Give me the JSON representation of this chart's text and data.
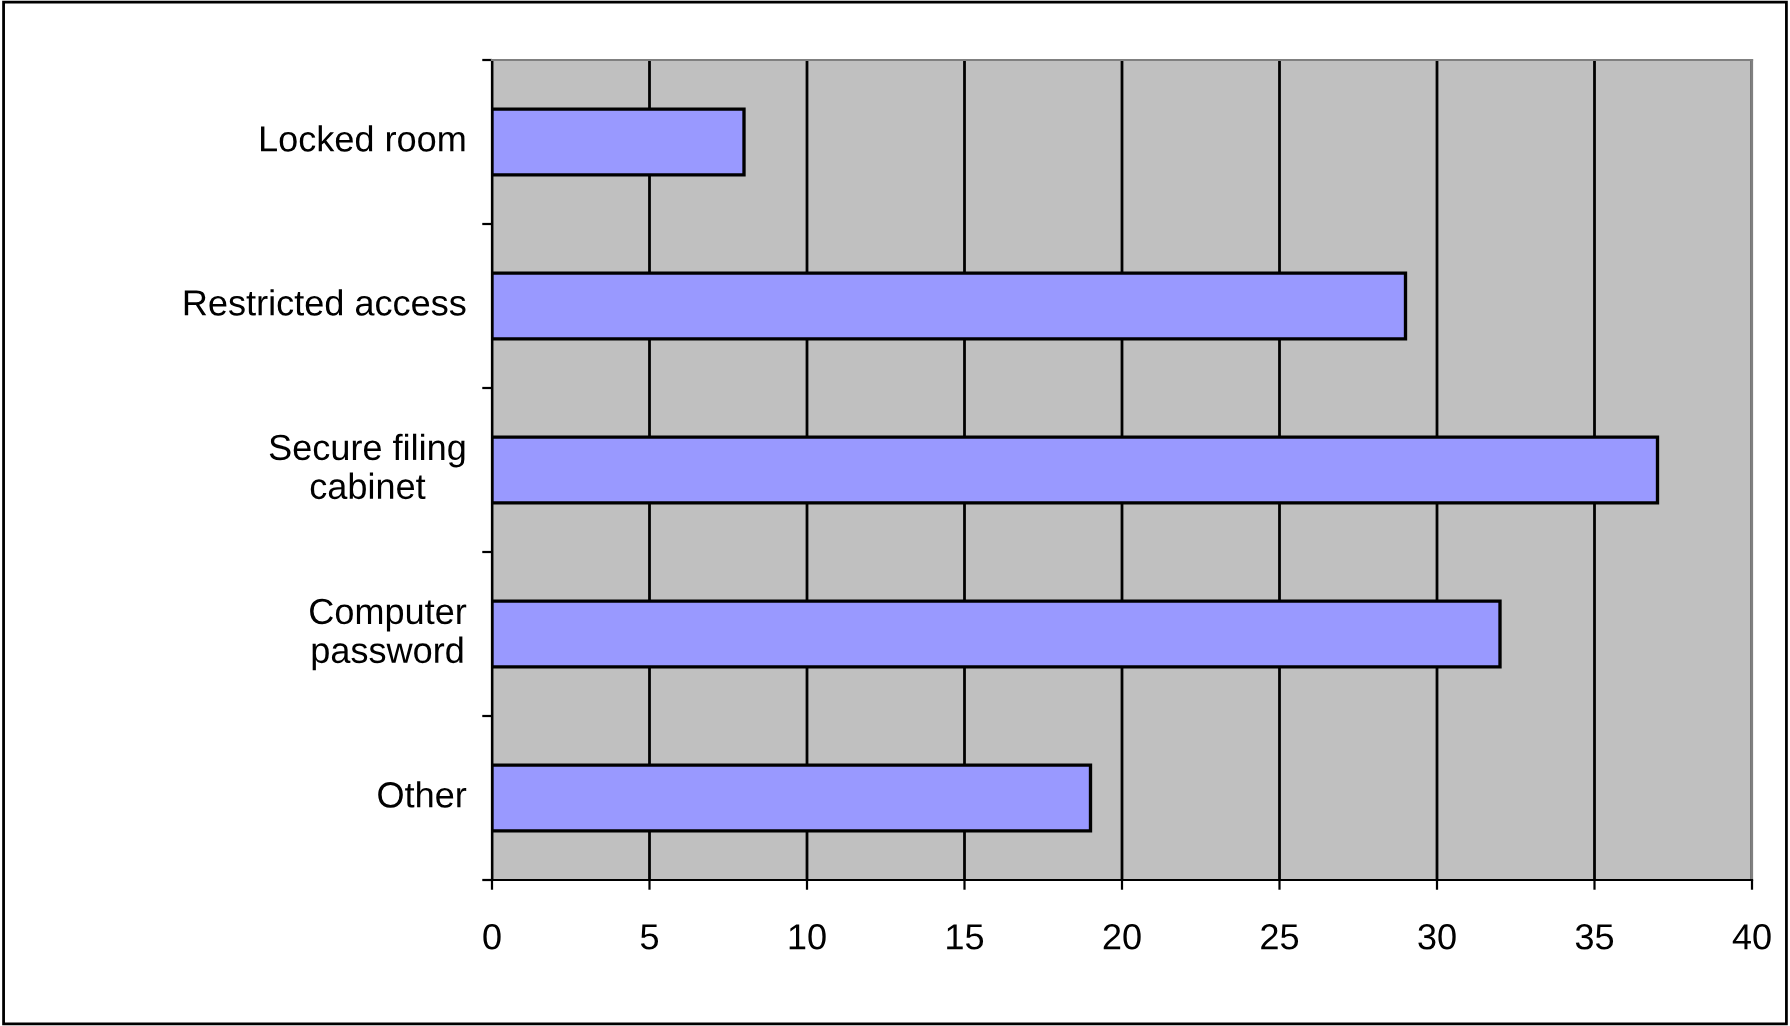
{
  "chart_data": {
    "type": "bar",
    "orientation": "horizontal",
    "categories": [
      "Locked room",
      "Restricted access",
      "Secure filing\ncabinet",
      "Computer\npassword",
      "Other"
    ],
    "values": [
      8,
      29,
      37,
      32,
      19
    ],
    "color": "#9999ff",
    "xlim": [
      0,
      40
    ],
    "xticks": [
      0,
      5,
      10,
      15,
      20,
      25,
      30,
      35,
      40
    ],
    "grid": "x",
    "legend": false
  }
}
